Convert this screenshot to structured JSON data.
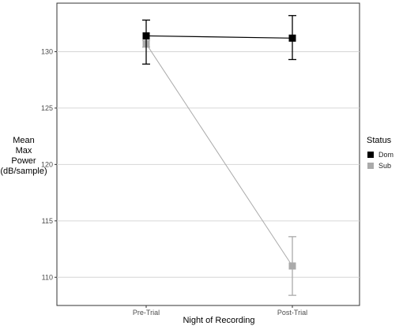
{
  "chart_data": {
    "type": "line",
    "categories": [
      "Pre-Trial",
      "Post-Trial"
    ],
    "series": [
      {
        "name": "Dom",
        "color": "#000000",
        "values": [
          131.4,
          131.2
        ],
        "error_low": [
          128.9,
          129.3
        ],
        "error_high": [
          132.8,
          133.2
        ]
      },
      {
        "name": "Sub",
        "color": "#aaaaaa",
        "values": [
          130.7,
          111.0
        ],
        "error_low": [
          130.4,
          108.4
        ],
        "error_high": [
          131.0,
          113.6
        ]
      }
    ],
    "xlabel": "Night of Recording",
    "ylabel_lines": [
      "Mean",
      "Max",
      "Power",
      "(dB/sample)"
    ],
    "yticks": [
      110,
      115,
      120,
      125,
      130
    ],
    "ylim": [
      107.5,
      134.3
    ],
    "grid": "horizontal major",
    "legend": {
      "title": "Status",
      "position": "right"
    }
  }
}
